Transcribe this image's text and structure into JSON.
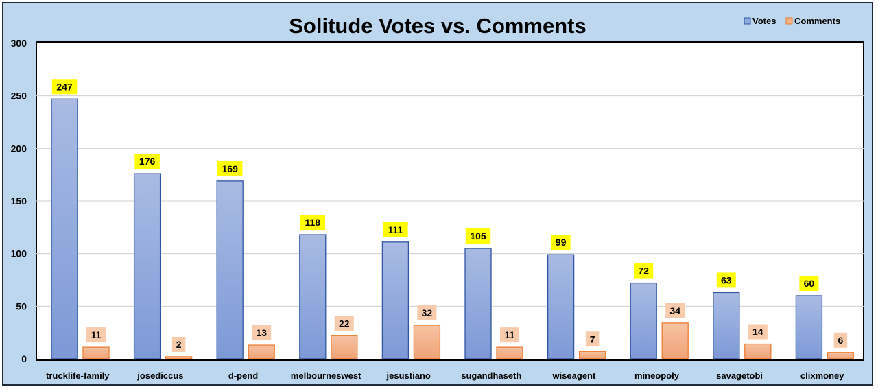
{
  "chart_data": {
    "type": "bar",
    "title": "Solitude Votes vs. Comments",
    "categories": [
      "trucklife-family",
      "josediccus",
      "d-pend",
      "melbourneswest",
      "jesustiano",
      "sugandhaseth",
      "wiseagent",
      "mineopoly",
      "savagetobi",
      "clixmoney"
    ],
    "series": [
      {
        "name": "Votes",
        "values": [
          247,
          176,
          169,
          118,
          111,
          105,
          99,
          72,
          63,
          60
        ],
        "color": "#8faadc",
        "label_bg": "#ffff00"
      },
      {
        "name": "Comments",
        "values": [
          11,
          2,
          13,
          22,
          32,
          11,
          7,
          34,
          14,
          6
        ],
        "color": "#f4b183",
        "label_bg": "#f8cbad"
      }
    ],
    "ylim": [
      0,
      300
    ],
    "yticks": [
      "0",
      "50",
      "100",
      "150",
      "200",
      "250",
      "300"
    ],
    "xlabel": "",
    "ylabel": "",
    "legend_position": "top-right",
    "grid": true
  }
}
